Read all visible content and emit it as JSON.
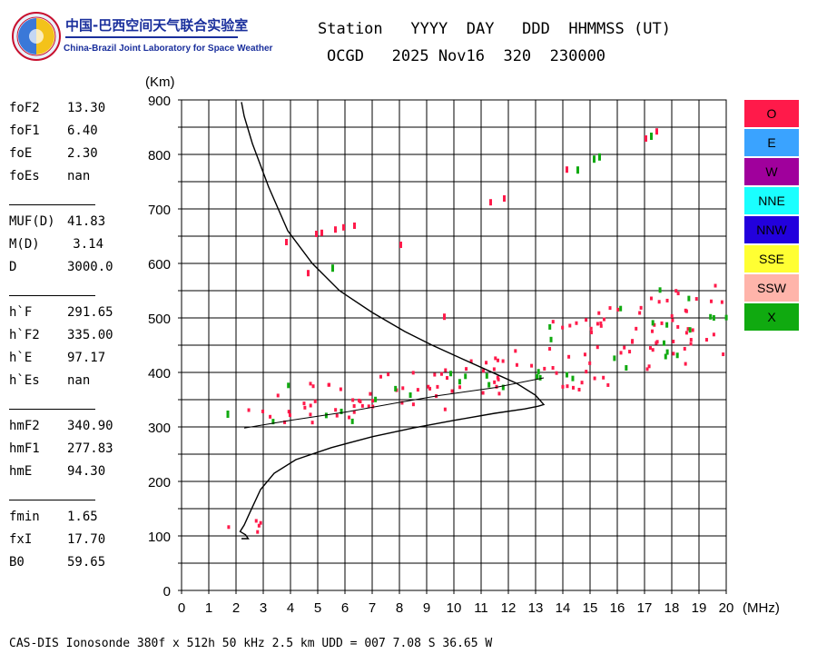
{
  "header": {
    "org_cn": "中国-巴西空间天气联合实验室",
    "org_en": "China-Brazil Joint Laboratory for Space Weather",
    "line1": "Station   YYYY  DAY   DDD  HHMMSS (UT)",
    "line2": "OCGD   2025 Nov16  320  230000"
  },
  "parameters": [
    {
      "name": "foF2",
      "value": "13.30"
    },
    {
      "name": "foF1",
      "value": "6.40"
    },
    {
      "name": "foE",
      "value": "2.30"
    },
    {
      "name": "foEs",
      "value": "nan"
    },
    {
      "name": "MUF(D)",
      "value": "41.83"
    },
    {
      "name": "M(D)",
      "value": "3.14"
    },
    {
      "name": "D",
      "value": "3000.0"
    },
    {
      "name": "h`F",
      "value": "291.65"
    },
    {
      "name": "h`F2",
      "value": "335.00"
    },
    {
      "name": "h`E",
      "value": "97.17"
    },
    {
      "name": "h`Es",
      "value": "nan"
    },
    {
      "name": "hmF2",
      "value": "340.90"
    },
    {
      "name": "hmF1",
      "value": "277.83"
    },
    {
      "name": "hmE",
      "value": "94.30"
    },
    {
      "name": "fmin",
      "value": "1.65"
    },
    {
      "name": "fxI",
      "value": "17.70"
    },
    {
      "name": "B0",
      "value": "59.65"
    }
  ],
  "footer": "CAS-DIS Ionosonde 380f x 512h 50 kHz 2.5 km UDD = 007 7.08 S 36.65 W",
  "chart_data": {
    "type": "scatter",
    "xlabel": "(MHz)",
    "ylabel": "(Km)",
    "xlim": [
      0,
      20
    ],
    "ylim": [
      0,
      900
    ],
    "xticks": [
      0,
      1,
      2,
      3,
      4,
      5,
      6,
      7,
      8,
      9,
      10,
      11,
      12,
      13,
      14,
      15,
      16,
      17,
      18,
      19,
      20
    ],
    "yticks": [
      0,
      100,
      200,
      300,
      400,
      500,
      600,
      700,
      800,
      900
    ],
    "grid": true,
    "legend": [
      {
        "label": "O",
        "color": "#ff1a4a"
      },
      {
        "label": "E",
        "color": "#3aa3ff"
      },
      {
        "label": "W",
        "color": "#a0009c"
      },
      {
        "label": "NNE",
        "color": "#1affff"
      },
      {
        "label": "NNW",
        "color": "#2200dd"
      },
      {
        "label": "SSE",
        "color": "#ffff33"
      },
      {
        "label": "SSW",
        "color": "#ffb4aa"
      },
      {
        "label": "X",
        "color": "#10aa10"
      }
    ],
    "echo_clusters": [
      {
        "series": "O",
        "x_range": [
          1.3,
          3.5
        ],
        "y_range": [
          90,
          140
        ]
      },
      {
        "series": "O",
        "x_range": [
          2.3,
          8.0
        ],
        "y_range": [
          290,
          420
        ]
      },
      {
        "series": "O",
        "x_range": [
          8.0,
          13.3
        ],
        "y_range": [
          320,
          460
        ]
      },
      {
        "series": "O",
        "x_range": [
          13.3,
          20.0
        ],
        "y_range": [
          350,
          590
        ]
      },
      {
        "series": "X",
        "x_range": [
          2.8,
          13.3
        ],
        "y_range": [
          300,
          430
        ]
      },
      {
        "series": "X",
        "x_range": [
          13.3,
          20.0
        ],
        "y_range": [
          370,
          600
        ]
      }
    ],
    "scattered_echoes": [
      {
        "series": "X",
        "x": 1.65,
        "y": 330
      },
      {
        "series": "O",
        "x": 3.8,
        "y": 645
      },
      {
        "series": "O",
        "x": 4.9,
        "y": 660
      },
      {
        "series": "O",
        "x": 5.1,
        "y": 662
      },
      {
        "series": "O",
        "x": 5.6,
        "y": 668
      },
      {
        "series": "O",
        "x": 5.9,
        "y": 672
      },
      {
        "series": "O",
        "x": 6.3,
        "y": 675
      },
      {
        "series": "O",
        "x": 4.6,
        "y": 588
      },
      {
        "series": "X",
        "x": 5.5,
        "y": 598
      },
      {
        "series": "O",
        "x": 8.0,
        "y": 640
      },
      {
        "series": "O",
        "x": 9.6,
        "y": 508
      },
      {
        "series": "O",
        "x": 11.3,
        "y": 718
      },
      {
        "series": "O",
        "x": 11.8,
        "y": 725
      },
      {
        "series": "O",
        "x": 14.1,
        "y": 778
      },
      {
        "series": "X",
        "x": 14.5,
        "y": 778
      },
      {
        "series": "X",
        "x": 15.1,
        "y": 798
      },
      {
        "series": "X",
        "x": 15.3,
        "y": 802
      },
      {
        "series": "O",
        "x": 17.0,
        "y": 835
      },
      {
        "series": "X",
        "x": 17.2,
        "y": 840
      },
      {
        "series": "O",
        "x": 17.4,
        "y": 848
      }
    ],
    "profile_curve": [
      [
        2.2,
        95
      ],
      [
        2.45,
        95
      ],
      [
        2.35,
        102
      ],
      [
        2.15,
        108
      ],
      [
        2.3,
        120
      ],
      [
        2.5,
        142
      ],
      [
        2.9,
        185
      ],
      [
        3.4,
        215
      ],
      [
        4.2,
        240
      ],
      [
        5.5,
        262
      ],
      [
        7.0,
        282
      ],
      [
        8.5,
        298
      ],
      [
        10.0,
        312
      ],
      [
        11.5,
        325
      ],
      [
        12.6,
        333
      ],
      [
        13.1,
        338
      ],
      [
        13.3,
        341
      ],
      [
        13.0,
        358
      ],
      [
        12.3,
        380
      ],
      [
        11.5,
        398
      ],
      [
        10.3,
        425
      ],
      [
        9.2,
        450
      ],
      [
        8.2,
        475
      ],
      [
        7.0,
        510
      ],
      [
        5.8,
        550
      ],
      [
        4.8,
        600
      ],
      [
        3.9,
        660
      ],
      [
        3.2,
        740
      ],
      [
        2.6,
        820
      ],
      [
        2.3,
        870
      ],
      [
        2.2,
        896
      ]
    ],
    "trace_line": [
      [
        2.3,
        298
      ],
      [
        4,
        312
      ],
      [
        6,
        327
      ],
      [
        8,
        345
      ],
      [
        9.5,
        358
      ],
      [
        10.5,
        365
      ],
      [
        11.5,
        372
      ],
      [
        12.5,
        382
      ],
      [
        13.3,
        390
      ]
    ]
  }
}
